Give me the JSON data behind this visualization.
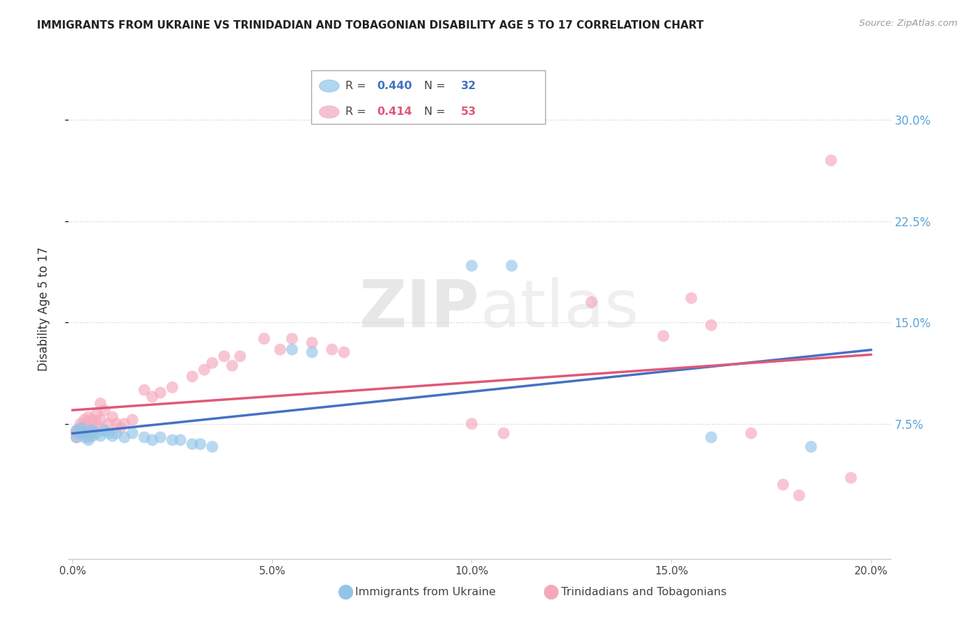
{
  "title": "IMMIGRANTS FROM UKRAINE VS TRINIDADIAN AND TOBAGONIAN DISABILITY AGE 5 TO 17 CORRELATION CHART",
  "source": "Source: ZipAtlas.com",
  "ylabel": "Disability Age 5 to 17",
  "yticks": [
    0.075,
    0.15,
    0.225,
    0.3
  ],
  "ytick_labels": [
    "7.5%",
    "15.0%",
    "22.5%",
    "30.0%"
  ],
  "xticks": [
    0.0,
    0.05,
    0.1,
    0.15,
    0.2
  ],
  "xtick_labels": [
    "0.0%",
    "5.0%",
    "10.0%",
    "15.0%",
    "20.0%"
  ],
  "xlim": [
    -0.001,
    0.205
  ],
  "ylim": [
    -0.025,
    0.345
  ],
  "legend_ukraine_r": "0.440",
  "legend_ukraine_n": "32",
  "legend_tt_r": "0.414",
  "legend_tt_n": "53",
  "ukraine_color": "#92c5e8",
  "tt_color": "#f5a8bc",
  "ukraine_line_color": "#4472c4",
  "tt_line_color": "#e05878",
  "watermark_zip": "ZIP",
  "watermark_atlas": "atlas",
  "ukraine_x": [
    0.001,
    0.001,
    0.002,
    0.002,
    0.003,
    0.003,
    0.004,
    0.004,
    0.005,
    0.005,
    0.006,
    0.007,
    0.008,
    0.009,
    0.01,
    0.011,
    0.013,
    0.015,
    0.018,
    0.02,
    0.022,
    0.025,
    0.027,
    0.03,
    0.032,
    0.035,
    0.055,
    0.06,
    0.1,
    0.11,
    0.16,
    0.185
  ],
  "ukraine_y": [
    0.065,
    0.07,
    0.068,
    0.072,
    0.065,
    0.068,
    0.07,
    0.063,
    0.066,
    0.07,
    0.068,
    0.066,
    0.07,
    0.068,
    0.066,
    0.068,
    0.065,
    0.068,
    0.065,
    0.063,
    0.065,
    0.063,
    0.063,
    0.06,
    0.06,
    0.058,
    0.13,
    0.128,
    0.192,
    0.192,
    0.065,
    0.058
  ],
  "tt_x": [
    0.001,
    0.001,
    0.001,
    0.002,
    0.002,
    0.002,
    0.003,
    0.003,
    0.003,
    0.004,
    0.004,
    0.005,
    0.005,
    0.005,
    0.006,
    0.006,
    0.007,
    0.007,
    0.008,
    0.008,
    0.009,
    0.01,
    0.011,
    0.012,
    0.013,
    0.015,
    0.018,
    0.02,
    0.022,
    0.025,
    0.03,
    0.033,
    0.035,
    0.038,
    0.04,
    0.042,
    0.048,
    0.052,
    0.055,
    0.06,
    0.065,
    0.068,
    0.1,
    0.108,
    0.13,
    0.148,
    0.155,
    0.16,
    0.17,
    0.178,
    0.182,
    0.19,
    0.195
  ],
  "tt_y": [
    0.07,
    0.068,
    0.065,
    0.075,
    0.07,
    0.068,
    0.078,
    0.072,
    0.068,
    0.08,
    0.065,
    0.078,
    0.072,
    0.068,
    0.082,
    0.075,
    0.09,
    0.078,
    0.085,
    0.07,
    0.075,
    0.08,
    0.075,
    0.072,
    0.075,
    0.078,
    0.1,
    0.095,
    0.098,
    0.102,
    0.11,
    0.115,
    0.12,
    0.125,
    0.118,
    0.125,
    0.138,
    0.13,
    0.138,
    0.135,
    0.13,
    0.128,
    0.075,
    0.068,
    0.165,
    0.14,
    0.168,
    0.148,
    0.068,
    0.03,
    0.022,
    0.27,
    0.035
  ]
}
